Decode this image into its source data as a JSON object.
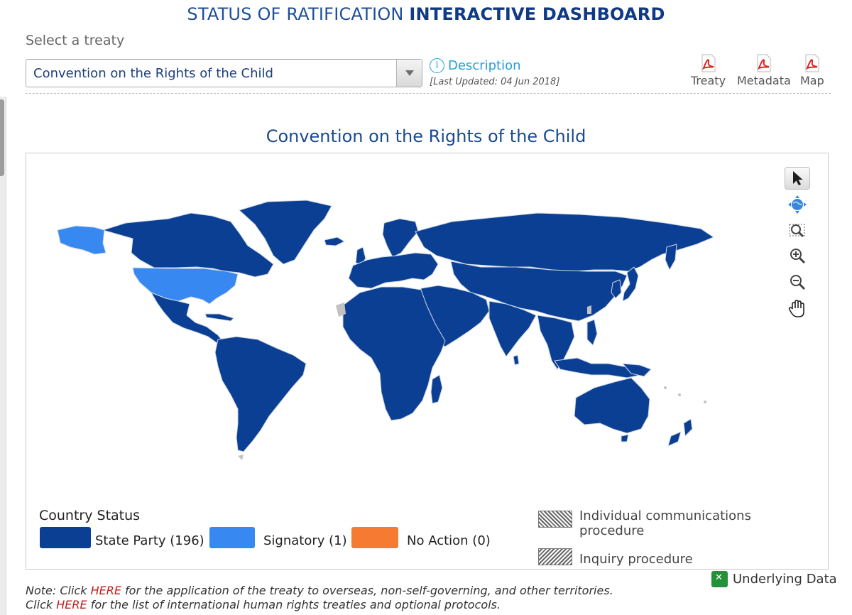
{
  "header": {
    "title_prefix": "STATUS OF RATIFICATION",
    "title_emphasis": "INTERACTIVE DASHBOARD"
  },
  "treaty_picker": {
    "label": "Select a treaty",
    "selected": "Convention on the Rights of the Child",
    "description_link": "Description",
    "info_icon": "i",
    "last_updated": "[Last Updated: 04 Jun 2018]"
  },
  "downloads": [
    {
      "label": "Treaty",
      "icon": "pdf-icon"
    },
    {
      "label": "Metadata",
      "icon": "pdf-icon"
    },
    {
      "label": "Map",
      "icon": "pdf-icon"
    }
  ],
  "map": {
    "title": "Convention on the Rights of the Child",
    "toolbar": [
      "select-arrow-icon",
      "globe-icon",
      "zoom-region-icon",
      "zoom-in-icon",
      "zoom-out-icon",
      "pan-hand-icon"
    ]
  },
  "legend": {
    "title": "Country Status",
    "items": [
      {
        "label": "State Party (196)",
        "color": "#0b3f94"
      },
      {
        "label": "Signatory (1)",
        "color": "#3788f0"
      },
      {
        "label": "No Action (0)",
        "color": "#f77a33"
      }
    ],
    "procedures": [
      "Individual communications procedure",
      "Inquiry procedure"
    ]
  },
  "colors": {
    "state_party": "#0b3f94",
    "signatory": "#3788f0",
    "no_action": "#f77a33",
    "no_data": "#c2c2c2",
    "title_blue": "#1a4a8f"
  },
  "underlying_data": {
    "label": "Underlying Data",
    "icon": "excel-icon"
  },
  "notes": {
    "line1_prefix": "Note: Click ",
    "line1_link": "HERE",
    "line1_suffix": " for the application of the treaty to overseas, non-self-governing, and other territories.",
    "line2_prefix": "Click ",
    "line2_link": "HERE",
    "line2_suffix": " for the list of international human rights treaties and optional protocols."
  }
}
